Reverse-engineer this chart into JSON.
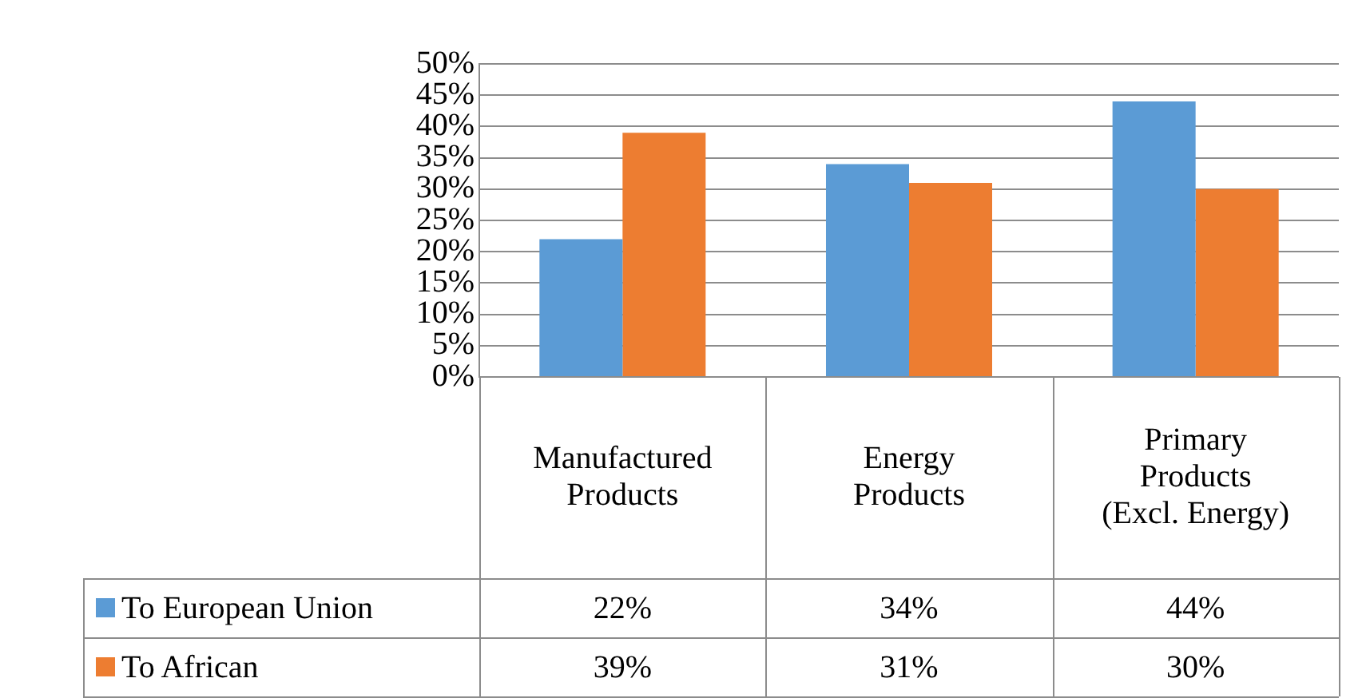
{
  "chart_data": {
    "type": "bar",
    "categories": [
      "Manufactured Products",
      "Energy Products",
      "Primary Products (Excl. Energy)"
    ],
    "series": [
      {
        "name": "To European Union",
        "color": "#5b9bd5",
        "values": [
          22,
          34,
          44
        ],
        "value_labels": [
          "22%",
          "34%",
          "44%"
        ]
      },
      {
        "name": "To African",
        "color": "#ed7d31",
        "values": [
          39,
          31,
          30
        ],
        "value_labels": [
          "39%",
          "31%",
          "30%"
        ]
      }
    ],
    "ylim": [
      0,
      50
    ],
    "yticks": [
      {
        "value": 0,
        "label": "0%"
      },
      {
        "value": 5,
        "label": "5%"
      },
      {
        "value": 10,
        "label": "10%"
      },
      {
        "value": 15,
        "label": "15%"
      },
      {
        "value": 20,
        "label": "20%"
      },
      {
        "value": 25,
        "label": "25%"
      },
      {
        "value": 30,
        "label": "30%"
      },
      {
        "value": 35,
        "label": "35%"
      },
      {
        "value": 40,
        "label": "40%"
      },
      {
        "value": 45,
        "label": "45%"
      },
      {
        "value": 50,
        "label": "50%"
      }
    ],
    "grid": "y",
    "legend": "bottom"
  }
}
